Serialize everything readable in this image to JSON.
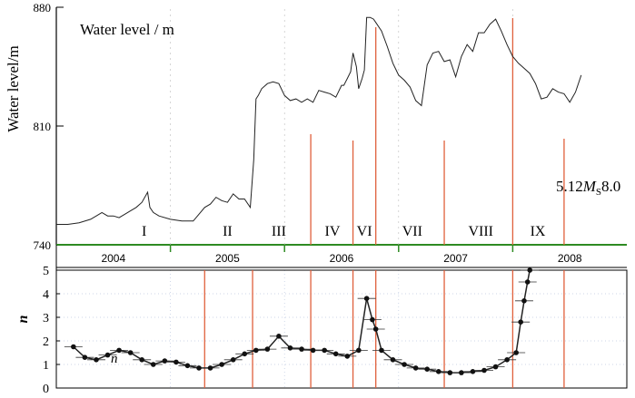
{
  "chart_data": [
    {
      "type": "line",
      "title": "Water level / m",
      "ylabel": "Water level/m",
      "ylim": [
        740,
        880
      ],
      "yticks": [
        "740",
        "810",
        "880"
      ],
      "x_years": [
        "2004",
        "2005",
        "2006",
        "2007",
        "2008"
      ],
      "xlim": [
        2003.5,
        2008.5
      ],
      "period_labels": [
        "I",
        "II",
        "III",
        "IV",
        "VI",
        "VII",
        "VIII",
        "IX"
      ],
      "annotation": {
        "pre": "5.12",
        "M": "M",
        "sub": "S",
        "post": "8.0"
      },
      "line_color": "#222222",
      "axis_color": "#2e8b22",
      "marker_color": "#e0603c",
      "series": [
        {
          "x": [
            2003.5,
            2003.6,
            2003.7,
            2003.8,
            2003.85,
            2003.9,
            2003.95,
            2004.0,
            2004.05,
            2004.1,
            2004.15,
            2004.2,
            2004.25,
            2004.3,
            2004.32,
            2004.35,
            2004.4,
            2004.5,
            2004.6,
            2004.7,
            2004.75,
            2004.8,
            2004.85,
            2004.9,
            2004.95,
            2005.0,
            2005.05,
            2005.1,
            2005.15,
            2005.2,
            2005.23,
            2005.25,
            2005.27,
            2005.3,
            2005.35,
            2005.4,
            2005.45,
            2005.5,
            2005.55,
            2005.6,
            2005.65,
            2005.7,
            2005.75,
            2005.8,
            2005.85,
            2005.9,
            2005.95,
            2006.0,
            2006.02,
            2006.05,
            2006.08,
            2006.1,
            2006.13,
            2006.15,
            2006.18,
            2006.2,
            2006.22,
            2006.25,
            2006.28,
            2006.3,
            2006.35,
            2006.4,
            2006.45,
            2006.5,
            2006.55,
            2006.6,
            2006.65,
            2006.7,
            2006.75,
            2006.8,
            2006.85,
            2006.9,
            2006.95,
            2007.0,
            2007.05,
            2007.1,
            2007.15,
            2007.2,
            2007.25,
            2007.3,
            2007.35,
            2007.4,
            2007.45,
            2007.5,
            2007.55,
            2007.6,
            2007.65,
            2007.7,
            2007.75,
            2007.8,
            2007.85,
            2007.9,
            2007.95,
            2008.0,
            2008.05,
            2008.1
          ],
          "y": [
            752,
            752,
            753,
            755,
            757,
            759,
            757,
            757,
            756,
            758,
            760,
            762,
            765,
            771,
            762,
            759,
            757,
            755,
            754,
            754,
            758,
            762,
            764,
            768,
            766,
            765,
            770,
            767,
            767,
            762,
            790,
            826,
            828,
            832,
            835,
            836,
            835,
            828,
            825,
            826,
            824,
            826,
            824,
            831,
            830,
            829,
            827,
            834,
            834,
            838,
            842,
            853,
            845,
            832,
            838,
            843,
            874,
            874,
            873,
            871,
            866,
            857,
            847,
            840,
            837,
            833,
            825,
            822,
            846,
            853,
            854,
            848,
            849,
            839,
            851,
            858,
            854,
            865,
            865,
            870,
            873,
            866,
            858,
            851,
            847,
            844,
            841,
            835,
            826,
            827,
            832,
            830,
            829,
            824,
            830,
            840
          ]
        }
      ]
    },
    {
      "type": "scatter",
      "ylabel": "n",
      "series_label": "n",
      "ylim": [
        0,
        5
      ],
      "yticks": [
        "0",
        "1",
        "2",
        "3",
        "4",
        "5"
      ],
      "xlim": [
        2003.5,
        2008.5
      ],
      "line_color": "#222222",
      "marker_color": "#e0603c",
      "grid": true,
      "series": [
        {
          "name": "n",
          "x": [
            2003.65,
            2003.75,
            2003.85,
            2003.95,
            2004.05,
            2004.15,
            2004.25,
            2004.35,
            2004.45,
            2004.55,
            2004.65,
            2004.75,
            2004.85,
            2004.95,
            2005.05,
            2005.15,
            2005.25,
            2005.35,
            2005.45,
            2005.55,
            2005.65,
            2005.75,
            2005.85,
            2005.95,
            2006.05,
            2006.15,
            2006.22,
            2006.27,
            2006.3,
            2006.35,
            2006.45,
            2006.55,
            2006.65,
            2006.75,
            2006.85,
            2006.95,
            2007.05,
            2007.15,
            2007.25,
            2007.35,
            2007.45,
            2007.53,
            2007.57,
            2007.6,
            2007.63,
            2007.65
          ],
          "y": [
            1.75,
            1.3,
            1.2,
            1.4,
            1.6,
            1.5,
            1.2,
            1.0,
            1.15,
            1.1,
            0.95,
            0.85,
            0.85,
            1.0,
            1.2,
            1.45,
            1.6,
            1.65,
            2.2,
            1.7,
            1.65,
            1.6,
            1.6,
            1.45,
            1.35,
            1.6,
            3.8,
            2.9,
            2.5,
            1.6,
            1.2,
            1.0,
            0.85,
            0.8,
            0.7,
            0.65,
            0.65,
            0.7,
            0.75,
            0.9,
            1.2,
            1.5,
            2.8,
            3.7,
            4.5,
            5.0
          ]
        }
      ]
    }
  ],
  "marker_years": [
    2004.8,
    2005.22,
    2005.73,
    2006.1,
    2006.3,
    2006.9,
    2007.5,
    2007.95
  ]
}
